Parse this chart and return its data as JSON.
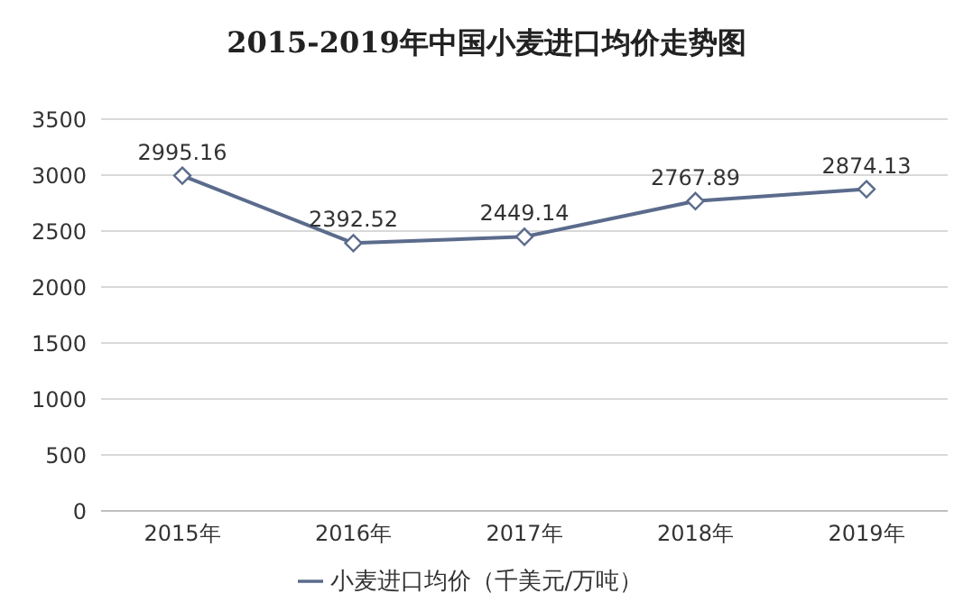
{
  "chart_data": {
    "type": "line",
    "title": "2015-2019年中国小麦进口均价走势图",
    "categories": [
      "2015年",
      "2016年",
      "2017年",
      "2018年",
      "2019年"
    ],
    "series": [
      {
        "name": "小麦进口均价（千美元/万吨）",
        "color": "#5b6b8c",
        "values": [
          2995.16,
          2392.52,
          2449.14,
          2767.89,
          2874.13
        ]
      }
    ],
    "ylim": [
      0,
      3500
    ],
    "yticks": [
      0,
      500,
      1000,
      1500,
      2000,
      2500,
      3000,
      3500
    ],
    "grid": "y",
    "legend": "bottom",
    "marker": "diamond",
    "line_style": "solid",
    "data_labels": true
  }
}
